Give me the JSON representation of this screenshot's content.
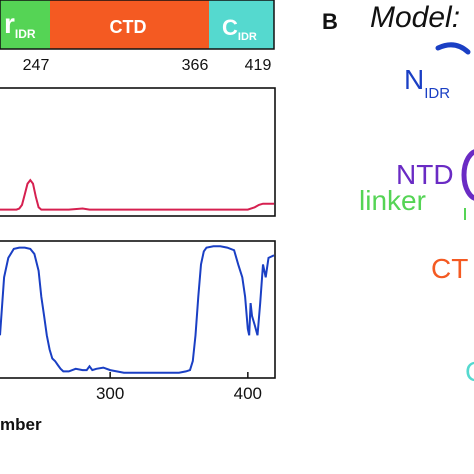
{
  "domain_bar": {
    "segments": [
      {
        "label": "r",
        "sub": "IDR",
        "color": "#55d455"
      },
      {
        "label": "CTD",
        "sub": "",
        "color": "#f45a22"
      },
      {
        "label": "C",
        "sub": "IDR",
        "color": "#55d9cf"
      }
    ],
    "boundaries": [
      "247",
      "366",
      "419"
    ]
  },
  "panel_b": {
    "letter": "B",
    "title": "Model:",
    "labels": [
      {
        "text": "N",
        "sub": "IDR",
        "color": "#1a3fc4"
      },
      {
        "text": "NTD",
        "sub": "",
        "color": "#6a2bc4"
      },
      {
        "text": "linker",
        "sub": "",
        "color": "#55d455"
      },
      {
        "text": "CT",
        "sub": "",
        "color": "#f45a22"
      },
      {
        "text": "C",
        "sub": "",
        "color": "#55d9cf"
      }
    ]
  },
  "chart_data": [
    {
      "type": "line",
      "title": "",
      "xlim": [
        220,
        419
      ],
      "ylim": [
        0,
        1
      ],
      "grid": false,
      "series": [
        {
          "color": "#d62050",
          "x": [
            220,
            232,
            234,
            236,
            238,
            240,
            242,
            244,
            246,
            248,
            250,
            252,
            255,
            260,
            270,
            280,
            285,
            290,
            300,
            320,
            340,
            360,
            380,
            400,
            405,
            408,
            411,
            414,
            419
          ],
          "y": [
            0.02,
            0.02,
            0.03,
            0.06,
            0.15,
            0.24,
            0.27,
            0.24,
            0.13,
            0.04,
            0.02,
            0.02,
            0.02,
            0.02,
            0.02,
            0.03,
            0.02,
            0.02,
            0.02,
            0.02,
            0.02,
            0.02,
            0.02,
            0.02,
            0.04,
            0.06,
            0.07,
            0.07,
            0.07
          ]
        }
      ]
    },
    {
      "type": "line",
      "title": "",
      "xlabel": "mber",
      "xlim": [
        220,
        419
      ],
      "ylim": [
        0,
        1
      ],
      "grid": false,
      "xticks": [
        "300",
        "400"
      ],
      "series": [
        {
          "color": "#1a3fc4",
          "x": [
            220,
            223,
            226,
            230,
            234,
            238,
            242,
            245,
            248,
            250,
            252,
            254,
            256,
            258,
            260,
            262,
            264,
            266,
            270,
            275,
            280,
            283,
            285,
            287,
            290,
            295,
            300,
            310,
            320,
            330,
            340,
            350,
            355,
            358,
            360,
            362,
            364,
            366,
            368,
            370,
            375,
            380,
            385,
            390,
            393,
            396,
            398,
            400,
            401,
            402,
            403,
            405,
            407,
            409,
            411,
            413,
            415,
            419
          ],
          "y": [
            0.3,
            0.75,
            0.9,
            0.97,
            0.98,
            0.98,
            0.97,
            0.93,
            0.8,
            0.6,
            0.45,
            0.3,
            0.19,
            0.12,
            0.1,
            0.07,
            0.04,
            0.02,
            0.02,
            0.04,
            0.03,
            0.03,
            0.06,
            0.03,
            0.04,
            0.05,
            0.03,
            0.01,
            0.01,
            0.01,
            0.01,
            0.01,
            0.02,
            0.03,
            0.1,
            0.3,
            0.6,
            0.85,
            0.95,
            0.98,
            0.99,
            0.99,
            0.98,
            0.96,
            0.85,
            0.75,
            0.6,
            0.35,
            0.3,
            0.55,
            0.45,
            0.38,
            0.3,
            0.55,
            0.85,
            0.75,
            0.9,
            0.92
          ]
        }
      ]
    }
  ]
}
